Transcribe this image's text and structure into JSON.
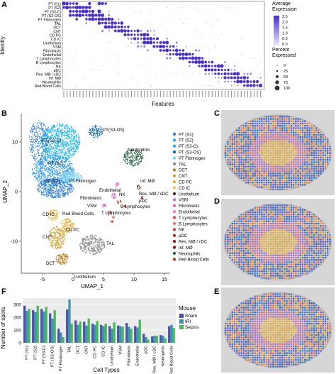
{
  "panels": {
    "A": "A",
    "B": "B",
    "C": "C",
    "D": "D",
    "E": "E",
    "F": "F"
  },
  "dotplot": {
    "ylabel": "Identity",
    "xlabel": "Features",
    "identities": [
      "PT (S1)",
      "PT (S2)",
      "PT (S3-C)",
      "PT (S3-OS)",
      "PT Fibrinogen",
      "TAL",
      "DCT",
      "CNT",
      "CD PC",
      "CD IC",
      "Urothelium",
      "VSM",
      "Fibroblasts",
      "Endothelial",
      "T Lymphocytes",
      "B Lymphocytes",
      "NK",
      "pDC",
      "Res. MØ / cDC",
      "Inf. MØ",
      "Neutrophils",
      "Red Blood Cells"
    ],
    "legend_expression_title": "Average Expression",
    "expression_ticks": [
      "2.5",
      "2.0",
      "1.5",
      "1.0",
      "0.5",
      "0.0"
    ],
    "legend_percent_title": "Percent Expressed",
    "percent_ticks": [
      "0",
      "25",
      "50",
      "75",
      "100"
    ],
    "colors": {
      "low": "#d9d9ee",
      "high": "#4a2fd0"
    }
  },
  "umap": {
    "xlabel": "UMAP_1",
    "ylabel": "UMAP_2",
    "xticks": [
      "-5",
      "0",
      "5",
      "10",
      "15"
    ],
    "yticks": [
      "10",
      "0",
      "-10"
    ],
    "cluster_labels": [
      "PT(S3-OS)",
      "PT(S3-C)",
      "PT (S2)",
      "PT (S1)",
      "PT Fibrinogen",
      "Neutrophils",
      "Inf. MØ",
      "Fibroblasts",
      "Endothelial",
      "NK",
      "Res. MØ / cDC",
      "pDC",
      "VSM",
      "B Lymphocytes",
      "T Lymphocytes",
      "Red Blood Cells",
      "CD IC",
      "CD PC",
      "CNT",
      "TAL",
      "DCT",
      "Urothelium"
    ],
    "legend": [
      {
        "name": "PT (S1)",
        "color": "#2f7fd6"
      },
      {
        "name": "PT (S2)",
        "color": "#3aa0e6"
      },
      {
        "name": "PT (S3-C)",
        "color": "#22b6e8"
      },
      {
        "name": "PT (S3-OS)",
        "color": "#1d6ea0"
      },
      {
        "name": "PT Fibrinogen",
        "color": "#7fd3f2"
      },
      {
        "name": "TAL",
        "color": "#8a8a8a"
      },
      {
        "name": "DCT",
        "color": "#b8862b"
      },
      {
        "name": "CNT",
        "color": "#d9a23a"
      },
      {
        "name": "CD PC",
        "color": "#e6b24a"
      },
      {
        "name": "CD IC",
        "color": "#f0c060"
      },
      {
        "name": "Urothelium",
        "color": "#333333"
      },
      {
        "name": "VSM",
        "color": "#c070e0"
      },
      {
        "name": "Fibroblasts",
        "color": "#e060c0"
      },
      {
        "name": "Endothelial",
        "color": "#f080d0"
      },
      {
        "name": "T Lymphocytes",
        "color": "#e65050"
      },
      {
        "name": "B Lymphocytes",
        "color": "#f07070"
      },
      {
        "name": "NK",
        "color": "#d04040"
      },
      {
        "name": "pDC",
        "color": "#b03030"
      },
      {
        "name": "Res. MØ / cDC",
        "color": "#902020"
      },
      {
        "name": "Inf. MØ",
        "color": "#6a2a2a"
      },
      {
        "name": "Neutrophils",
        "color": "#2e6b4a"
      },
      {
        "name": "Red Blood Cells",
        "color": "#c03a1a"
      }
    ]
  },
  "chart_data": {
    "type": "bar",
    "xlabel": "Cell Types",
    "ylabel": "Number of spots",
    "ylim": [
      0,
      350
    ],
    "yticks": [
      0,
      100,
      200,
      300
    ],
    "legend_title": "Mouse",
    "legend_position": "right",
    "categories": [
      "PT (S1)",
      "PT (S2)",
      "PT (S3-C)",
      "PT (S3-OS)",
      "PT Fibrinogen",
      "TAL",
      "DCT",
      "CNT",
      "CD PC",
      "CD IC",
      "Urothelium",
      "VSM",
      "Fibroblasts",
      "Endothelial",
      "pDC",
      "Res. MØ / cDC",
      "Neutrophils",
      "Red Blood Cells"
    ],
    "series": [
      {
        "name": "Sham",
        "color": "#4a4fb0",
        "values": [
          290,
          255,
          265,
          230,
          110,
          260,
          175,
          165,
          150,
          140,
          130,
          135,
          155,
          130,
          70,
          50,
          60,
          130
        ]
      },
      {
        "name": "IRI",
        "color": "#3d93a8",
        "values": [
          250,
          240,
          245,
          190,
          80,
          340,
          140,
          135,
          140,
          130,
          110,
          130,
          125,
          120,
          45,
          55,
          55,
          140
        ]
      },
      {
        "name": "Sepsis",
        "color": "#49b85a",
        "values": [
          265,
          290,
          280,
          255,
          45,
          150,
          165,
          190,
          170,
          150,
          160,
          125,
          110,
          180,
          25,
          55,
          35,
          115
        ]
      }
    ]
  }
}
